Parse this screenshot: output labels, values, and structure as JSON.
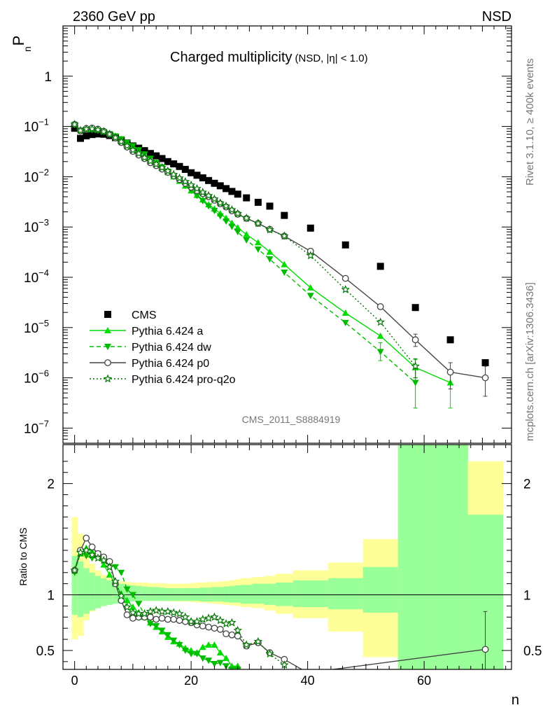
{
  "header": {
    "energy_label": "2360 GeV pp",
    "process_label": "NSD",
    "y_label_main": "P",
    "y_label_sub": "n",
    "plot_title": "Charged multiplicity",
    "plot_title_small": "(NSD, |η| < 1.0)",
    "analysis_id": "CMS_2011_S8884919",
    "side_label_top": "Rivet 3.1.10, ≥ 400k events",
    "side_label_bottom": "mcplots.cern.ch [arXiv:1306.3436]",
    "ratio_ylabel": "Ratio to CMS",
    "x_label": "n"
  },
  "colors": {
    "data": "#000000",
    "pythia_a": "#00dd00",
    "pythia_dw": "#00bb00",
    "pythia_p0": "#444444",
    "pythia_proq2o": "#007700",
    "band_outer": "#ffff99",
    "band_inner": "#99ff99"
  },
  "chart_data": [
    {
      "type": "scatter",
      "panel": "main",
      "y_scale": "log",
      "xlim": [
        -2,
        75
      ],
      "ylim": [
        5e-08,
        10
      ],
      "x_ticks": [
        "0",
        "20",
        "40",
        "60"
      ],
      "y_ticks": [
        "10^-7",
        "10^-6",
        "10^-5",
        "10^-4",
        "10^-3",
        "10^-2",
        "10^-1",
        "1"
      ],
      "legend_position": "lower-left",
      "series": [
        {
          "name": "CMS",
          "style": "square",
          "x": [
            0,
            1,
            2,
            3,
            4,
            5,
            6,
            7,
            8,
            9,
            10,
            11,
            12,
            13,
            14,
            15,
            16,
            17,
            18,
            19,
            20,
            21,
            22,
            23,
            24,
            25,
            26,
            27,
            28,
            29.5,
            31.5,
            33.5,
            36,
            40.5,
            46.5,
            52.5,
            58.5,
            64.5,
            70.5
          ],
          "y": [
            0.092,
            0.058,
            0.065,
            0.069,
            0.071,
            0.07,
            0.066,
            0.06,
            0.053,
            0.047,
            0.041,
            0.037,
            0.033,
            0.029,
            0.026,
            0.023,
            0.02,
            0.018,
            0.016,
            0.014,
            0.012,
            0.0107,
            0.0095,
            0.0084,
            0.0074,
            0.0066,
            0.0058,
            0.0051,
            0.0045,
            0.0038,
            0.0031,
            0.0026,
            0.0017,
            0.00095,
            0.00044,
            0.000165,
            2.5e-05,
            5.7e-06,
            2e-06
          ]
        },
        {
          "name": "Pythia 6.424 a",
          "style": "triangle-up",
          "x": [
            0,
            1,
            2,
            3,
            4,
            5,
            6,
            7,
            8,
            9,
            10,
            11,
            12,
            13,
            14,
            15,
            16,
            17,
            18,
            19,
            20,
            21,
            22,
            23,
            24,
            25,
            26,
            27,
            28,
            29.5,
            31.5,
            33.5,
            36,
            40.5,
            46.5,
            52.5,
            58.5,
            64.5
          ],
          "y": [
            0.11,
            0.085,
            0.088,
            0.088,
            0.085,
            0.08,
            0.073,
            0.065,
            0.056,
            0.048,
            0.04,
            0.033,
            0.027,
            0.022,
            0.018,
            0.0149,
            0.0122,
            0.01,
            0.0082,
            0.0066,
            0.0053,
            0.0043,
            0.0035,
            0.0028,
            0.0023,
            0.00185,
            0.0015,
            0.0012,
            0.00097,
            0.00071,
            0.00049,
            0.00032,
            0.00018,
            6.2e-05,
            1.95e-05,
            6.8e-06,
            1.6e-06,
            8e-07
          ],
          "errors": {
            "58.5": [
              1e-06,
              2.3e-06
            ],
            "64.5": [
              2.5e-07,
              1.4e-06
            ]
          }
        },
        {
          "name": "Pythia 6.424 dw",
          "style": "triangle-down",
          "x": [
            0,
            1,
            2,
            3,
            4,
            5,
            6,
            7,
            8,
            9,
            10,
            11,
            12,
            13,
            14,
            15,
            16,
            17,
            18,
            19,
            20,
            21,
            22,
            23,
            24,
            25,
            26,
            27,
            28,
            29.5,
            31.5,
            33.5,
            36,
            40.5,
            46.5,
            52.5,
            58.5
          ],
          "y": [
            0.108,
            0.08,
            0.087,
            0.086,
            0.083,
            0.078,
            0.071,
            0.064,
            0.056,
            0.048,
            0.041,
            0.034,
            0.028,
            0.023,
            0.019,
            0.0156,
            0.0128,
            0.0104,
            0.0084,
            0.0067,
            0.0053,
            0.0042,
            0.0033,
            0.0026,
            0.0021,
            0.00165,
            0.0013,
            0.00102,
            0.0008,
            0.00055,
            0.00036,
            0.00023,
            0.000125,
            4.3e-05,
            1.25e-05,
            3.3e-06,
            8e-07
          ],
          "errors": {
            "52.5": [
              2.2e-06,
              5e-06
            ],
            "58.5": [
              2.5e-07,
              1.6e-06
            ]
          }
        },
        {
          "name": "Pythia 6.424 p0",
          "style": "circle-open",
          "x": [
            0,
            1,
            2,
            3,
            4,
            5,
            6,
            7,
            8,
            9,
            10,
            11,
            12,
            13,
            14,
            15,
            16,
            17,
            18,
            19,
            20,
            21,
            22,
            23,
            24,
            25,
            26,
            27,
            28,
            29.5,
            31.5,
            33.5,
            36,
            40.5,
            46.5,
            52.5,
            58.5,
            64.5,
            70.5
          ],
          "y": [
            0.11,
            0.082,
            0.091,
            0.093,
            0.088,
            0.08,
            0.07,
            0.059,
            0.048,
            0.039,
            0.032,
            0.027,
            0.023,
            0.019,
            0.0166,
            0.0142,
            0.0122,
            0.0104,
            0.0088,
            0.0074,
            0.0062,
            0.0053,
            0.0046,
            0.004,
            0.0034,
            0.0029,
            0.0025,
            0.0021,
            0.0018,
            0.00148,
            0.00118,
            0.0009,
            0.00066,
            0.00033,
            9.5e-05,
            2.6e-05,
            5.7e-06,
            1.3e-06,
            1e-06
          ],
          "errors": {
            "58.5": [
              4.2e-06,
              7.4e-06
            ],
            "64.5": [
              6e-07,
              2e-06
            ],
            "70.5": [
              4.3e-07,
              1.7e-06
            ]
          }
        },
        {
          "name": "Pythia 6.424 pro-q2o",
          "style": "star",
          "x": [
            0,
            1,
            2,
            3,
            4,
            5,
            6,
            7,
            8,
            9,
            10,
            11,
            12,
            13,
            14,
            15,
            16,
            17,
            18,
            19,
            20,
            21,
            22,
            23,
            24,
            25,
            26,
            27,
            28,
            29.5,
            31.5,
            33.5,
            36,
            40.5,
            46.5,
            52.5,
            58.5
          ],
          "y": [
            0.11,
            0.083,
            0.089,
            0.09,
            0.086,
            0.079,
            0.07,
            0.06,
            0.05,
            0.041,
            0.034,
            0.029,
            0.024,
            0.0205,
            0.0178,
            0.0152,
            0.013,
            0.0111,
            0.0094,
            0.008,
            0.0068,
            0.0058,
            0.0049,
            0.0042,
            0.0036,
            0.003,
            0.0026,
            0.0022,
            0.00185,
            0.0015,
            0.00118,
            0.00088,
            0.00066,
            0.00027,
            5.7e-05,
            1.28e-05,
            1.7e-06
          ],
          "errors": {
            "58.5": [
              1e-06,
              2.4e-06
            ]
          }
        }
      ]
    },
    {
      "type": "line",
      "panel": "ratio",
      "xlim": [
        -2,
        75
      ],
      "ylim": [
        0.33,
        2.35
      ],
      "x_ticks": [
        "0",
        "20",
        "40",
        "60"
      ],
      "y_ticks": [
        "0.5",
        "1",
        "2"
      ],
      "reference_line": 1,
      "uncertainty_bands": {
        "edges": [
          -0.5,
          0.5,
          1.5,
          2.5,
          3.5,
          4.5,
          5.5,
          6.5,
          7.5,
          8.5,
          9.5,
          10.5,
          11.5,
          12.5,
          13.5,
          14.5,
          15.5,
          16.5,
          17.5,
          18.5,
          19.5,
          20.5,
          21.5,
          22.5,
          23.5,
          24.5,
          25.5,
          26.5,
          27.5,
          28.5,
          30.5,
          32.5,
          34.5,
          37.5,
          43.5,
          49.5,
          55.5,
          61.5,
          67.5,
          73.5
        ],
        "outer_upper": [
          1.7,
          1.55,
          1.38,
          1.28,
          1.22,
          1.18,
          1.15,
          1.13,
          1.12,
          1.115,
          1.11,
          1.11,
          1.11,
          1.105,
          1.105,
          1.105,
          1.1,
          1.1,
          1.1,
          1.1,
          1.105,
          1.11,
          1.11,
          1.115,
          1.115,
          1.12,
          1.125,
          1.13,
          1.14,
          1.15,
          1.16,
          1.17,
          1.19,
          1.22,
          1.29,
          1.5,
          2.35,
          2.35,
          2.2
        ],
        "outer_lower": [
          0.6,
          0.63,
          0.77,
          0.85,
          0.88,
          0.9,
          0.92,
          0.93,
          0.94,
          0.945,
          0.95,
          0.95,
          0.95,
          0.95,
          0.95,
          0.945,
          0.945,
          0.94,
          0.94,
          0.94,
          0.935,
          0.93,
          0.93,
          0.925,
          0.92,
          0.915,
          0.91,
          0.905,
          0.9,
          0.89,
          0.88,
          0.86,
          0.83,
          0.79,
          0.67,
          0.44,
          0.33,
          0.33,
          0.33
        ],
        "inner_upper": [
          1.35,
          1.3,
          1.24,
          1.2,
          1.17,
          1.15,
          1.13,
          1.11,
          1.1,
          1.09,
          1.085,
          1.08,
          1.075,
          1.07,
          1.07,
          1.065,
          1.06,
          1.06,
          1.06,
          1.06,
          1.06,
          1.06,
          1.065,
          1.065,
          1.07,
          1.07,
          1.075,
          1.08,
          1.085,
          1.09,
          1.1,
          1.1,
          1.11,
          1.13,
          1.15,
          1.25,
          2.35,
          2.35,
          1.72
        ],
        "inner_lower": [
          0.82,
          0.8,
          0.83,
          0.86,
          0.88,
          0.9,
          0.91,
          0.92,
          0.93,
          0.935,
          0.94,
          0.94,
          0.945,
          0.945,
          0.945,
          0.945,
          0.945,
          0.945,
          0.945,
          0.945,
          0.945,
          0.945,
          0.94,
          0.94,
          0.94,
          0.94,
          0.935,
          0.93,
          0.93,
          0.92,
          0.92,
          0.91,
          0.9,
          0.89,
          0.87,
          0.84,
          0.33,
          0.33,
          0.33
        ]
      },
      "series": [
        {
          "name": "Pythia 6.424 a",
          "x": [
            0,
            1,
            2,
            3,
            4,
            5,
            6,
            7,
            8,
            9,
            10,
            11,
            12,
            13,
            14,
            15,
            16,
            17,
            18,
            19,
            20,
            21,
            22,
            23,
            24,
            25,
            26,
            27,
            28
          ],
          "y": [
            1.22,
            1.37,
            1.42,
            1.39,
            1.35,
            1.27,
            1.18,
            1.1,
            1.01,
            0.95,
            0.89,
            0.84,
            0.8,
            0.75,
            0.71,
            0.67,
            0.62,
            0.58,
            0.56,
            0.52,
            0.5,
            0.48,
            0.53,
            0.55,
            0.55,
            0.48,
            0.43,
            0.36,
            0.36
          ]
        },
        {
          "name": "Pythia 6.424 dw",
          "x": [
            0,
            1,
            2,
            3,
            4,
            5,
            6,
            7,
            8,
            9,
            10,
            11,
            12,
            13,
            14,
            15,
            16,
            17,
            18,
            19,
            20,
            21,
            22,
            23,
            24,
            25,
            26,
            27,
            28
          ],
          "y": [
            1.2,
            1.38,
            1.35,
            1.33,
            1.37,
            1.31,
            1.27,
            1.25,
            1.2,
            1.05,
            1.0,
            0.92,
            0.82,
            0.74,
            0.72,
            0.68,
            0.64,
            0.59,
            0.55,
            0.5,
            0.47,
            0.47,
            0.43,
            0.41,
            0.38,
            0.39,
            0.36,
            0.33,
            0.33
          ]
        },
        {
          "name": "Pythia 6.424 p0",
          "x": [
            0,
            1,
            2,
            3,
            4,
            5,
            6,
            7,
            8,
            9,
            10,
            11,
            12,
            13,
            14,
            15,
            16,
            17,
            18,
            19,
            20,
            21,
            22,
            23,
            24,
            25,
            26,
            27,
            28,
            29.5,
            31.5,
            33.5,
            36,
            40,
            70.5
          ],
          "y": [
            1.22,
            1.4,
            1.51,
            1.43,
            1.37,
            1.34,
            1.3,
            1.1,
            0.95,
            0.82,
            0.79,
            0.8,
            0.8,
            0.8,
            0.78,
            0.79,
            0.78,
            0.78,
            0.77,
            0.76,
            0.75,
            0.73,
            0.72,
            0.71,
            0.7,
            0.69,
            0.65,
            0.64,
            0.63,
            0.54,
            0.57,
            0.48,
            0.42,
            0.3,
            0.51
          ],
          "errors": {
            "70.5": [
              0.25,
              0.85
            ]
          }
        },
        {
          "name": "Pythia 6.424 pro-q2o",
          "x": [
            0,
            1,
            2,
            3,
            4,
            5,
            6,
            7,
            8,
            9,
            10,
            11,
            12,
            13,
            14,
            15,
            16,
            17,
            18,
            19,
            20,
            21,
            22,
            23,
            24,
            25,
            26,
            27,
            28,
            29.5,
            31.5,
            33.5,
            36
          ],
          "y": [
            1.22,
            1.38,
            1.4,
            1.36,
            1.33,
            1.31,
            1.25,
            1.12,
            0.99,
            0.89,
            0.84,
            0.83,
            0.83,
            0.85,
            0.86,
            0.85,
            0.85,
            0.84,
            0.83,
            0.8,
            0.76,
            0.76,
            0.78,
            0.79,
            0.8,
            0.77,
            0.74,
            0.75,
            0.68,
            0.55,
            0.58,
            0.47,
            0.37
          ]
        }
      ]
    }
  ]
}
